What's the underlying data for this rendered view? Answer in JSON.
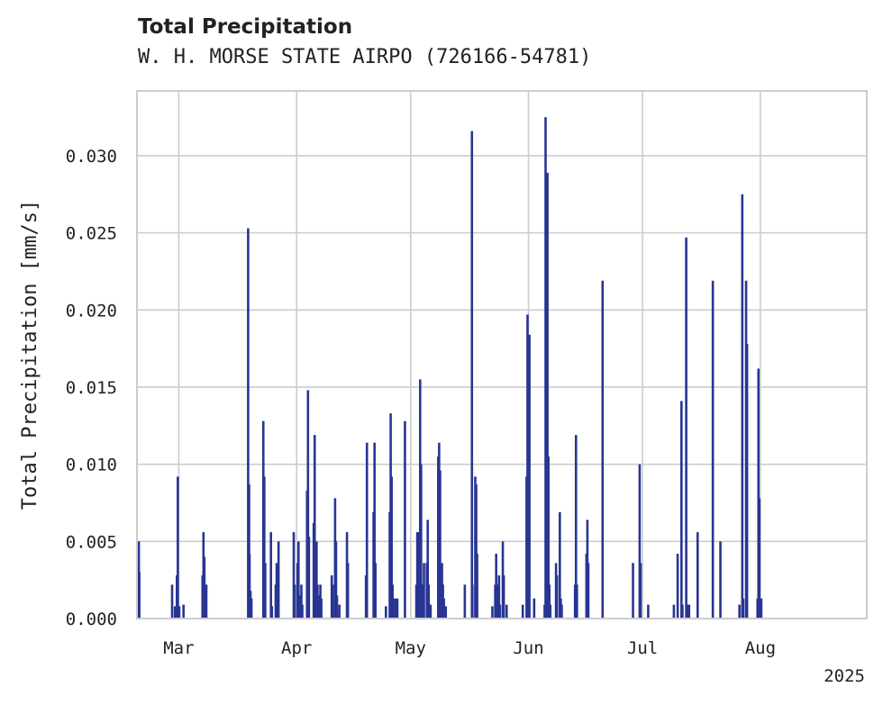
{
  "chart_data": {
    "type": "bar",
    "title": "Total Precipitation",
    "subtitle": "W. H. MORSE STATE AIRPO (726166-54781)",
    "xlabel": "",
    "ylabel": "Total Precipitation [mm/s]",
    "x_tick_labels": [
      "Mar",
      "Apr",
      "May",
      "Jun",
      "Jul",
      "Aug"
    ],
    "x_ticks": [
      "2025-03-01",
      "2025-04-01",
      "2025-05-01",
      "2025-06-01",
      "2025-07-01",
      "2025-08-01"
    ],
    "x_offset_label": "2025",
    "xlim": [
      "2025-02-18",
      "2025-08-29"
    ],
    "ylim": [
      0,
      0.0342
    ],
    "y_ticks": [
      0.0,
      0.005,
      0.01,
      0.015,
      0.02,
      0.025,
      0.03
    ],
    "y_tick_labels": [
      "0.000",
      "0.005",
      "0.010",
      "0.015",
      "0.020",
      "0.025",
      "0.030"
    ],
    "grid": true,
    "bar_color": "#283593",
    "x": [
      "2025-02-18T12:00",
      "2025-02-18T15:00",
      "2025-02-27T06:00",
      "2025-02-28T00:00",
      "2025-02-28T12:00",
      "2025-02-28T18:00",
      "2025-03-01T03:00",
      "2025-03-02T06:00",
      "2025-03-07T06:00",
      "2025-03-07T12:00",
      "2025-03-07T18:00",
      "2025-03-08T06:00",
      "2025-03-19T06:00",
      "2025-03-19T12:00",
      "2025-03-19T15:00",
      "2025-03-19T21:00",
      "2025-03-20T03:00",
      "2025-03-23T06:00",
      "2025-03-23T12:00",
      "2025-03-23T18:00",
      "2025-03-25T06:00",
      "2025-03-25T12:00",
      "2025-03-26T12:00",
      "2025-03-26T18:00",
      "2025-03-27T06:00",
      "2025-03-31T06:00",
      "2025-03-31T12:00",
      "2025-04-01T06:00",
      "2025-04-01T12:00",
      "2025-04-01T18:00",
      "2025-04-02T06:00",
      "2025-04-02T12:00",
      "2025-04-03T18:00",
      "2025-04-04T00:00",
      "2025-04-04T06:00",
      "2025-04-05T12:00",
      "2025-04-05T18:00",
      "2025-04-06T06:00",
      "2025-04-06T12:00",
      "2025-04-06T18:00",
      "2025-04-07T06:00",
      "2025-04-07T12:00",
      "2025-04-10T06:00",
      "2025-04-10T12:00",
      "2025-04-11T03:00",
      "2025-04-11T09:00",
      "2025-04-11T15:00",
      "2025-04-12T06:00",
      "2025-04-14T06:00",
      "2025-04-14T12:00",
      "2025-04-19T06:00",
      "2025-04-19T12:00",
      "2025-04-21T06:00",
      "2025-04-21T12:00",
      "2025-04-21T18:00",
      "2025-04-24T12:00",
      "2025-04-25T12:00",
      "2025-04-25T18:00",
      "2025-04-26T00:00",
      "2025-04-26T06:00",
      "2025-04-26T12:00",
      "2025-04-27T00:00",
      "2025-04-27T12:00",
      "2025-04-29T12:00",
      "2025-05-02T12:00",
      "2025-05-02T18:00",
      "2025-05-03T06:00",
      "2025-05-03T12:00",
      "2025-05-03T18:00",
      "2025-05-04T06:00",
      "2025-05-04T12:00",
      "2025-05-05T06:00",
      "2025-05-05T12:00",
      "2025-05-05T18:00",
      "2025-05-06T06:00",
      "2025-05-08T06:00",
      "2025-05-08T12:00",
      "2025-05-08T18:00",
      "2025-05-09T06:00",
      "2025-05-09T12:00",
      "2025-05-09T18:00",
      "2025-05-10T06:00",
      "2025-05-15T06:00",
      "2025-05-17T03:00",
      "2025-05-17T06:00",
      "2025-05-18T00:00",
      "2025-05-18T06:00",
      "2025-05-18T12:00",
      "2025-05-22T12:00",
      "2025-05-23T06:00",
      "2025-05-23T12:00",
      "2025-05-24T00:00",
      "2025-05-24T06:00",
      "2025-05-24T12:00",
      "2025-05-25T06:00",
      "2025-05-25T12:00",
      "2025-05-26T06:00",
      "2025-05-30T12:00",
      "2025-05-31T12:00",
      "2025-05-31T18:00",
      "2025-06-01T06:00",
      "2025-06-02T12:00",
      "2025-06-05T06:00",
      "2025-06-05T12:00",
      "2025-06-06T00:00",
      "2025-06-06T06:00",
      "2025-06-06T12:00",
      "2025-06-06T18:00",
      "2025-06-08T06:00",
      "2025-06-08T12:00",
      "2025-06-09T06:00",
      "2025-06-09T12:00",
      "2025-06-09T18:00",
      "2025-06-13T06:00",
      "2025-06-13T12:00",
      "2025-06-13T18:00",
      "2025-06-16T06:00",
      "2025-06-16T12:00",
      "2025-06-16T18:00",
      "2025-06-20T12:00",
      "2025-06-28T12:00",
      "2025-06-30T06:00",
      "2025-06-30T12:00",
      "2025-07-02T12:00",
      "2025-07-09T06:00",
      "2025-07-10T06:00",
      "2025-07-11T06:00",
      "2025-07-11T12:00",
      "2025-07-12T12:00",
      "2025-07-13T00:00",
      "2025-07-13T06:00",
      "2025-07-15T12:00",
      "2025-07-19T12:00",
      "2025-07-21T12:00",
      "2025-07-26T12:00",
      "2025-07-27T06:00",
      "2025-07-27T12:00",
      "2025-07-28T06:00",
      "2025-07-28T12:00",
      "2025-07-31T06:00",
      "2025-07-31T12:00",
      "2025-07-31T18:00",
      "2025-08-01T06:00"
    ],
    "values": [
      0.005,
      0.003,
      0.0022,
      0.0008,
      0.0028,
      0.0092,
      0.0008,
      0.0009,
      0.0028,
      0.0056,
      0.004,
      0.0022,
      0.0253,
      0.0087,
      0.0042,
      0.0018,
      0.0013,
      0.0128,
      0.0092,
      0.0036,
      0.0056,
      0.0008,
      0.0022,
      0.0036,
      0.005,
      0.0056,
      0.0022,
      0.0036,
      0.005,
      0.0015,
      0.0022,
      0.0009,
      0.0083,
      0.0148,
      0.0053,
      0.0062,
      0.0119,
      0.005,
      0.0022,
      0.0015,
      0.0022,
      0.0013,
      0.0028,
      0.0022,
      0.0078,
      0.005,
      0.0015,
      0.0009,
      0.0056,
      0.0036,
      0.0028,
      0.0114,
      0.0069,
      0.0114,
      0.0036,
      0.0008,
      0.0069,
      0.0133,
      0.0092,
      0.0022,
      0.0013,
      0.0013,
      0.0013,
      0.0128,
      0.0022,
      0.0056,
      0.0056,
      0.0155,
      0.01,
      0.0022,
      0.0036,
      0.0036,
      0.0064,
      0.0022,
      0.0009,
      0.0105,
      0.0114,
      0.0096,
      0.0036,
      0.0022,
      0.0013,
      0.0008,
      0.0022,
      0.0316,
      0.0022,
      0.0092,
      0.0087,
      0.0042,
      0.0008,
      0.0022,
      0.0042,
      0.0022,
      0.0028,
      0.0009,
      0.005,
      0.0028,
      0.0009,
      0.0009,
      0.0092,
      0.0197,
      0.0184,
      0.0013,
      0.0009,
      0.0325,
      0.0289,
      0.0105,
      0.0022,
      0.0009,
      0.0036,
      0.0028,
      0.0069,
      0.0013,
      0.0009,
      0.0022,
      0.0119,
      0.0022,
      0.0042,
      0.0064,
      0.0036,
      0.0219,
      0.0036,
      0.01,
      0.0036,
      0.0009,
      0.0009,
      0.0042,
      0.0141,
      0.0009,
      0.0247,
      0.0009,
      0.0009,
      0.0056,
      0.0219,
      0.005,
      0.0009,
      0.0275,
      0.0013,
      0.0219,
      0.0178,
      0.0013,
      0.0162,
      0.0078,
      0.0013
    ]
  }
}
